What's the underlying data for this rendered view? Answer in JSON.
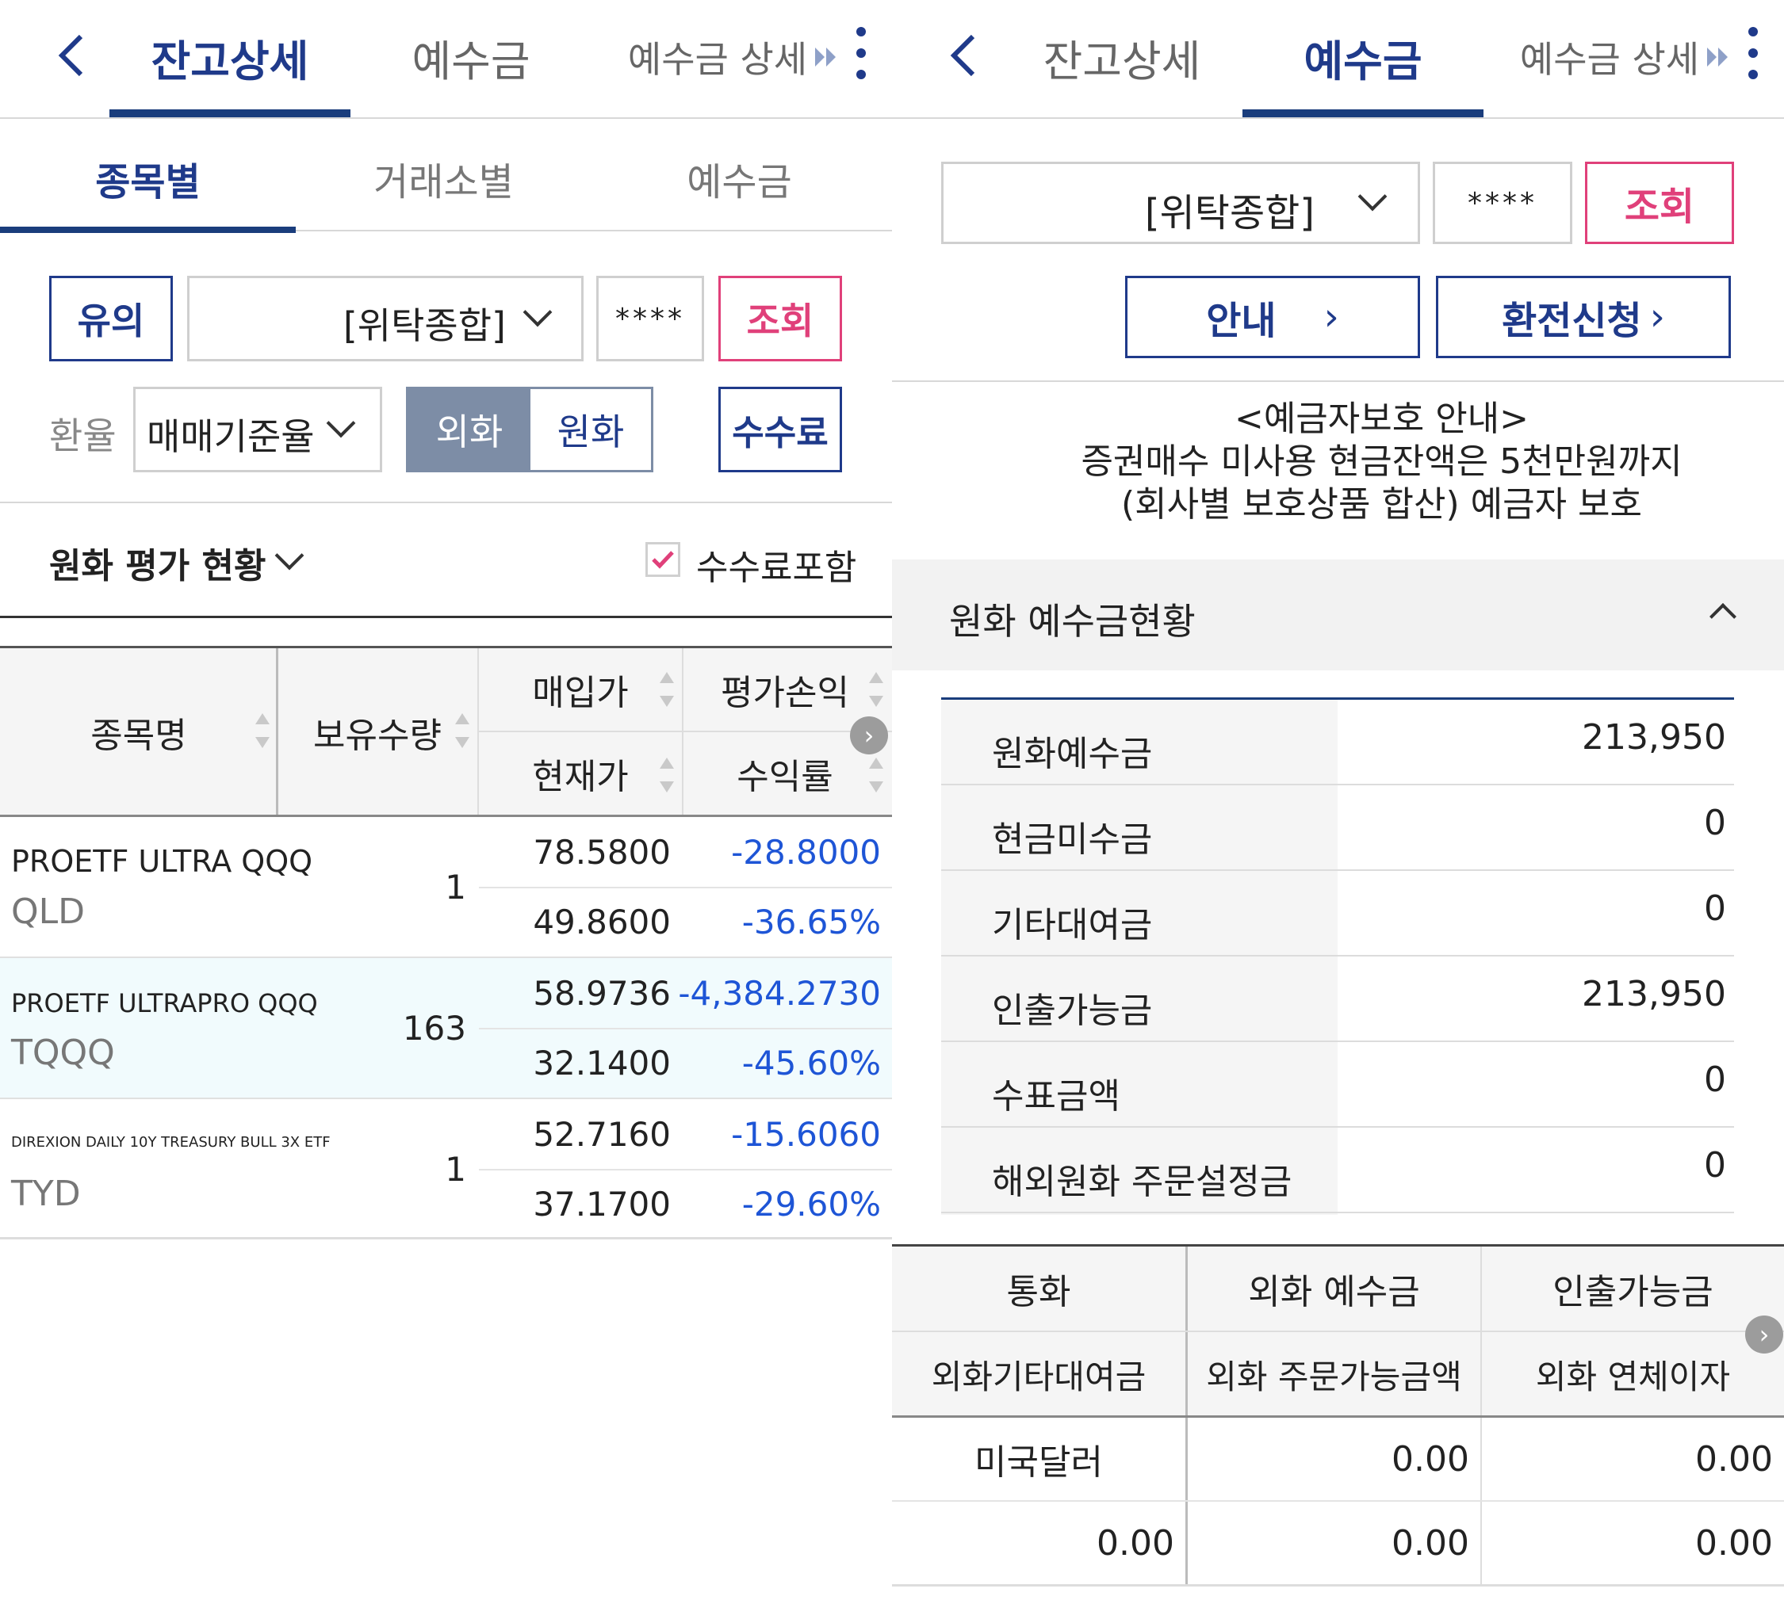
{
  "left": {
    "tabs": [
      "잔고상세",
      "예수금",
      "예수금 상세"
    ],
    "subtabs": [
      "종목별",
      "거래소별",
      "예수금"
    ],
    "controls": {
      "notice_btn": "유의",
      "account_type": "[위탁종합]",
      "password_mask": "****",
      "search_btn": "조회",
      "rate_label": "환율",
      "rate_value": "매매기준율",
      "toggle_foreign": "외화",
      "toggle_won": "원화",
      "fee_btn": "수수료"
    },
    "valuation_label": "원화 평가 현황",
    "fee_include_label": "수수료포함",
    "table": {
      "headers": {
        "name": "종목명",
        "qty": "보유수량",
        "buy_price": "매입가",
        "pnl": "평가손익",
        "cur_price": "현재가",
        "return": "수익률"
      },
      "rows": [
        {
          "name": "PROETF ULTRA QQQ",
          "ticker": "QLD",
          "qty": "1",
          "buy_price": "78.5800",
          "pnl": "-28.8000",
          "cur_price": "49.8600",
          "return": "-36.65%"
        },
        {
          "name": "PROETF ULTRAPRO QQQ",
          "ticker": "TQQQ",
          "qty": "163",
          "buy_price": "58.9736",
          "pnl": "-4,384.2730",
          "cur_price": "32.1400",
          "return": "-45.60%"
        },
        {
          "name": "DIREXION DAILY 10Y TREASURY BULL 3X ETF",
          "ticker": "TYD",
          "qty": "1",
          "buy_price": "52.7160",
          "pnl": "-15.6060",
          "cur_price": "37.1700",
          "return": "-29.60%"
        }
      ]
    }
  },
  "right": {
    "tabs": [
      "잔고상세",
      "예수금",
      "예수금 상세"
    ],
    "controls": {
      "account_type": "[위탁종합]",
      "password_mask": "****",
      "search_btn": "조회",
      "guide_btn": "안내",
      "exchange_btn": "환전신청"
    },
    "notice": {
      "line1": "<예금자보호 안내>",
      "line2": "증권매수 미사용 현금잔액은 5천만원까지",
      "line3": "(회사별 보호상품 합산) 예금자 보호"
    },
    "section_title": "원화 예수금현황",
    "won_rows": [
      {
        "label": "원화예수금",
        "value": "213,950"
      },
      {
        "label": "현금미수금",
        "value": "0"
      },
      {
        "label": "기타대여금",
        "value": "0"
      },
      {
        "label": "인출가능금",
        "value": "213,950"
      },
      {
        "label": "수표금액",
        "value": "0"
      },
      {
        "label": "해외원화 주문설정금",
        "value": "0"
      }
    ],
    "fx_table": {
      "headers_row1": [
        "통화",
        "외화 예수금",
        "인출가능금"
      ],
      "headers_row2": [
        "외화기타대여금",
        "외화 주문가능금액",
        "외화 연체이자"
      ],
      "row1": [
        "미국달러",
        "0.00",
        "0.00"
      ],
      "row2": [
        "0.00",
        "0.00",
        "0.00"
      ]
    }
  },
  "colors": {
    "navy": "#1f3a8a",
    "pink": "#e0407a",
    "blue_value": "#1e55d6",
    "toggle_active": "#7d8da6"
  }
}
